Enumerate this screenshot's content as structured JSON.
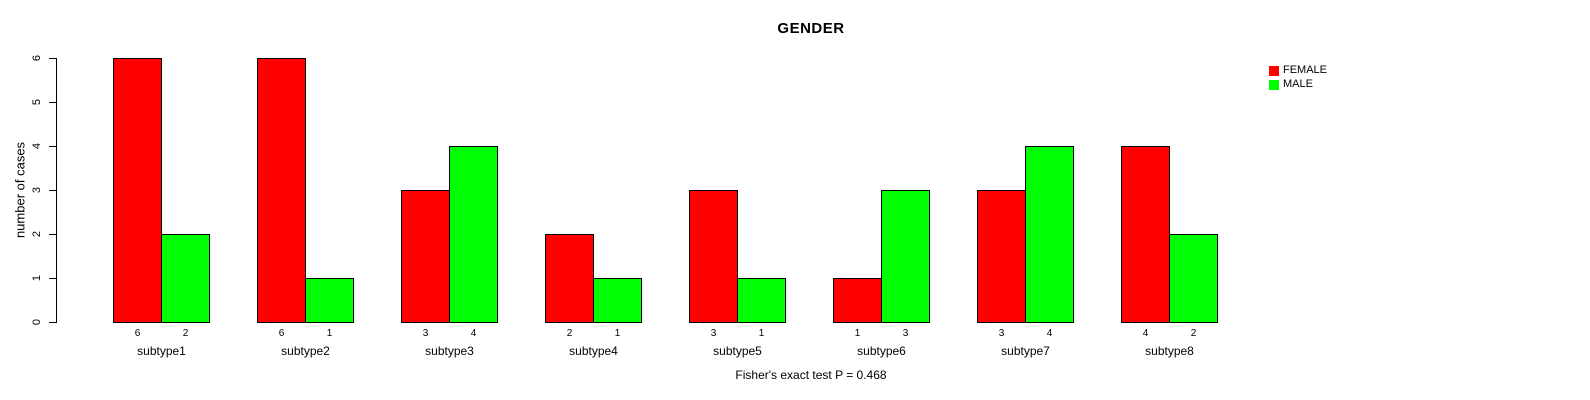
{
  "title": "GENDER",
  "y_axis": {
    "label": "number of cases",
    "ticks": [
      0,
      1,
      2,
      3,
      4,
      5,
      6
    ]
  },
  "footer": "Fisher's exact test P = 0.468",
  "legend": {
    "items": [
      {
        "label": "FEMALE",
        "color": "#ff0000"
      },
      {
        "label": "MALE",
        "color": "#00ff00"
      }
    ]
  },
  "chart_data": {
    "type": "bar",
    "title": "GENDER",
    "xlabel": "",
    "ylabel": "number of cases",
    "ylim": [
      0,
      6
    ],
    "yticks": [
      0,
      1,
      2,
      3,
      4,
      5,
      6
    ],
    "grid": false,
    "legend_position": "top-right",
    "categories": [
      "subtype1",
      "subtype2",
      "subtype3",
      "subtype4",
      "subtype5",
      "subtype6",
      "subtype7",
      "subtype8"
    ],
    "series": [
      {
        "name": "FEMALE",
        "color": "#ff0000",
        "values": [
          6,
          6,
          3,
          2,
          3,
          1,
          3,
          4
        ]
      },
      {
        "name": "MALE",
        "color": "#00ff00",
        "values": [
          2,
          1,
          4,
          1,
          1,
          3,
          4,
          2
        ]
      }
    ],
    "bar_value_labels": true,
    "annotation": "Fisher's exact test P = 0.468"
  }
}
